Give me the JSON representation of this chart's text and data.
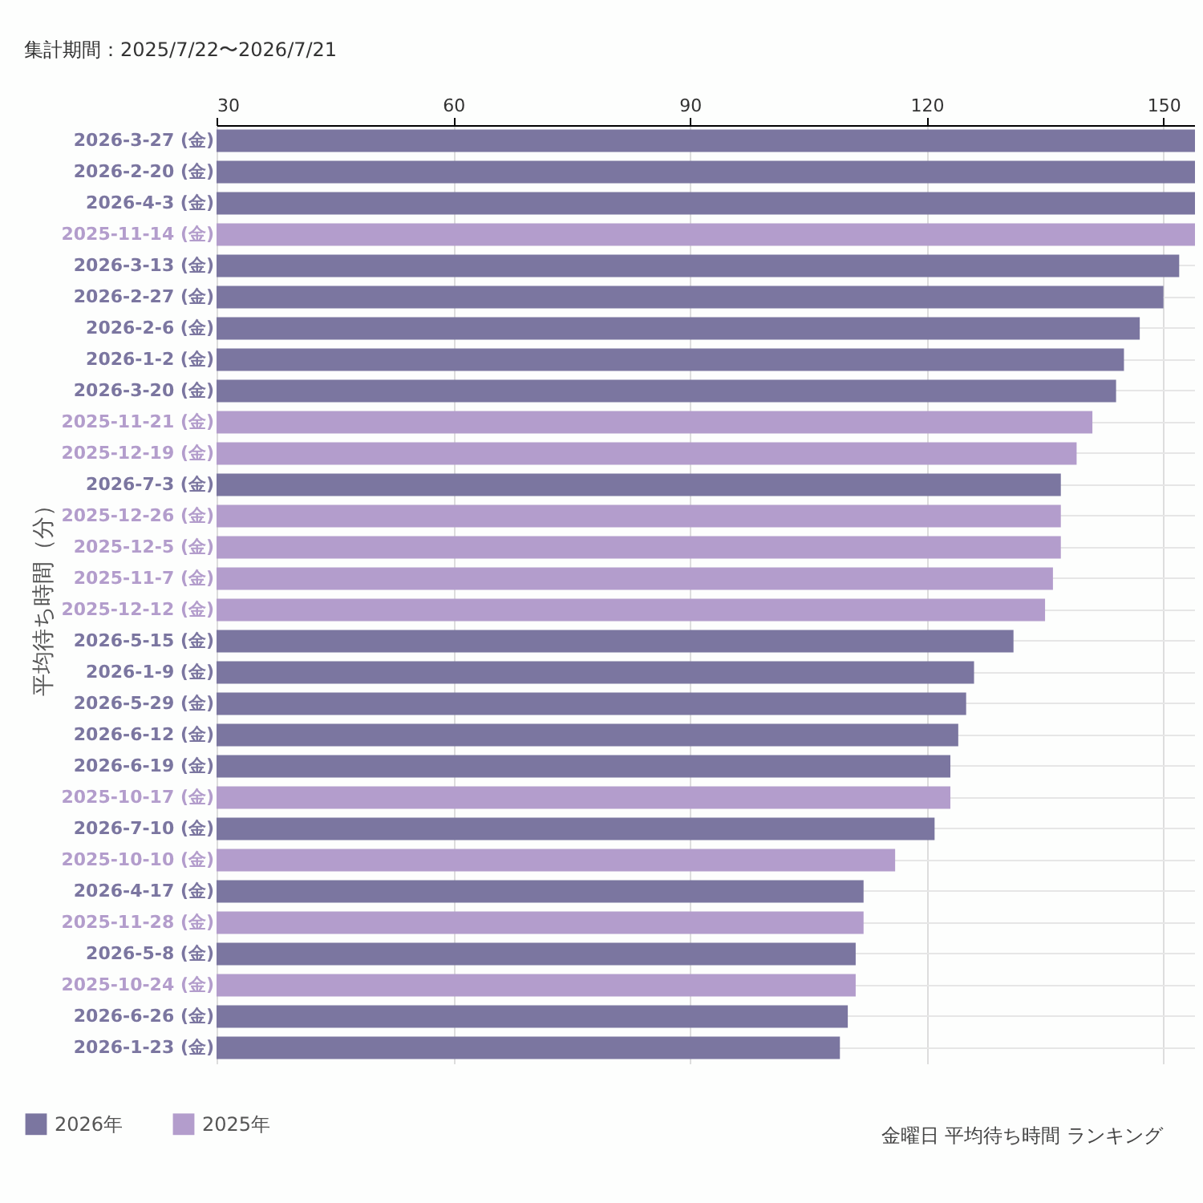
{
  "chart_data": {
    "type": "bar",
    "orientation": "horizontal",
    "title": "集計期間：2025/7/22〜2026/7/21",
    "ylabel": "平均待ち時間（分）",
    "annotations": [
      "金曜日 平均待ち時間 ランキング"
    ],
    "categories": [
      "2026-3-27 (金)",
      "2026-2-20 (金)",
      "2026-4-3 (金)",
      "2025-11-14 (金)",
      "2026-3-13 (金)",
      "2026-2-27 (金)",
      "2026-2-6 (金)",
      "2026-1-2 (金)",
      "2026-3-20 (金)",
      "2025-11-21 (金)",
      "2025-12-19 (金)",
      "2026-7-3 (金)",
      "2025-12-26 (金)",
      "2025-12-5 (金)",
      "2025-11-7 (金)",
      "2025-12-12 (金)",
      "2026-5-15 (金)",
      "2026-1-9 (金)",
      "2026-5-29 (金)",
      "2026-6-12 (金)",
      "2026-6-19 (金)",
      "2025-10-17 (金)",
      "2026-7-10 (金)",
      "2025-10-10 (金)",
      "2026-4-17 (金)",
      "2025-11-28 (金)",
      "2026-5-8 (金)",
      "2025-10-24 (金)",
      "2026-6-26 (金)",
      "2026-1-23 (金)"
    ],
    "series": [
      {
        "name": "2026年",
        "color": "#7b76a0",
        "values": [
          154,
          154,
          154,
          null,
          152,
          150,
          147,
          145,
          144,
          null,
          null,
          137,
          null,
          null,
          null,
          null,
          131,
          126,
          125,
          124,
          123,
          null,
          121,
          null,
          112,
          null,
          111,
          null,
          110,
          109
        ]
      },
      {
        "name": "2025年",
        "color": "#b39dcc",
        "values": [
          null,
          null,
          null,
          154,
          null,
          null,
          null,
          null,
          null,
          141,
          139,
          null,
          137,
          137,
          136,
          135,
          null,
          null,
          null,
          null,
          null,
          123,
          null,
          116,
          null,
          112,
          null,
          111,
          null,
          null
        ]
      }
    ],
    "xlim": [
      30,
      154
    ],
    "xticks": [
      30,
      60,
      90,
      120,
      150
    ],
    "grid": true,
    "legend": "bottom left"
  }
}
